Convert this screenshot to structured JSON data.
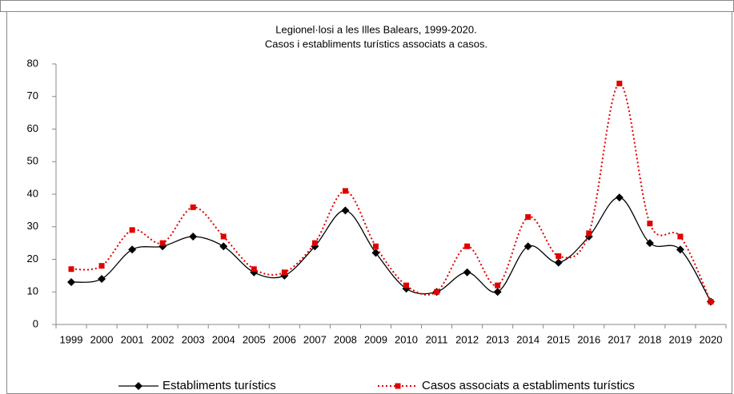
{
  "chart_data": {
    "type": "line",
    "title": [
      "Legionel·losi a les Illes Balears, 1999-2020.",
      "Casos i establiments turístics associats a casos."
    ],
    "categories": [
      "1999",
      "2000",
      "2001",
      "2002",
      "2003",
      "2004",
      "2005",
      "2006",
      "2007",
      "2008",
      "2009",
      "2010",
      "2011",
      "2012",
      "2013",
      "2014",
      "2015",
      "2016",
      "2017",
      "2018",
      "2019",
      "2020"
    ],
    "series": [
      {
        "name": "Establiments turístics",
        "color": "#000000",
        "marker": "diamond",
        "dash": "solid",
        "values": [
          13,
          14,
          23,
          24,
          27,
          24,
          16,
          15,
          24,
          35,
          22,
          11,
          10,
          16,
          10,
          24,
          19,
          27,
          39,
          25,
          23,
          7
        ]
      },
      {
        "name": "Casos associats a  establiments turístics",
        "color": "#e00000",
        "marker": "square",
        "dash": "dotted",
        "values": [
          17,
          18,
          29,
          25,
          36,
          27,
          17,
          16,
          25,
          41,
          24,
          12,
          10,
          24,
          12,
          33,
          21,
          28,
          74,
          31,
          27,
          7
        ]
      }
    ],
    "ylim": [
      0,
      80
    ],
    "yticks": [
      0,
      10,
      20,
      30,
      40,
      50,
      60,
      70,
      80
    ],
    "grid": false,
    "smooth": true,
    "legend": "bottom"
  }
}
